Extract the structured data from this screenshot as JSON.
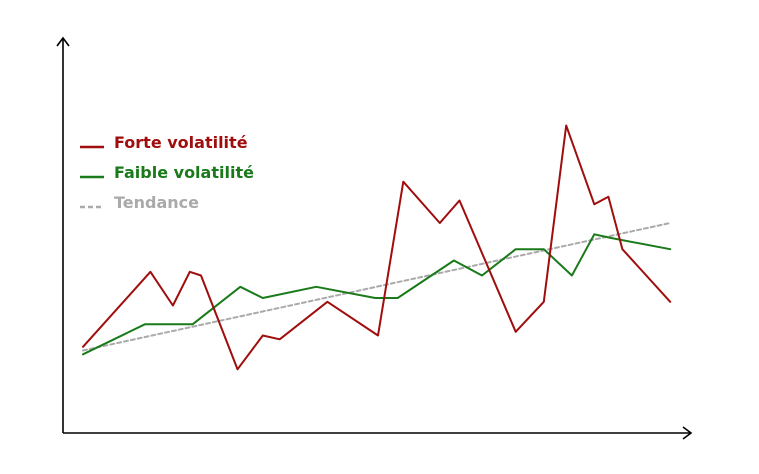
{
  "chart_data": {
    "type": "line",
    "title": "",
    "xlabel": "",
    "ylabel": "",
    "grid": false,
    "legend_position": "top-left",
    "x": [
      0,
      1,
      2,
      3,
      4,
      5,
      6,
      7,
      8,
      9,
      10,
      11,
      12,
      13,
      14,
      15,
      16,
      17,
      18,
      19,
      20,
      21
    ],
    "ylim": [
      0,
      10
    ],
    "series": [
      {
        "name": "Forte volatilité",
        "color": "#a00d0d",
        "style": "solid",
        "x": [
          0,
          2.4,
          3.2,
          3.8,
          4.2,
          5.5,
          6.4,
          7,
          8.7,
          10.5,
          11.4,
          12.7,
          13.4,
          15.4,
          16.4,
          17.2,
          18.2,
          18.7,
          19.2,
          20.9
        ],
        "values": [
          2.3,
          4.3,
          3.4,
          4.3,
          4.2,
          1.7,
          2.6,
          2.5,
          3.5,
          2.6,
          6.7,
          5.6,
          6.2,
          2.7,
          3.5,
          8.2,
          6.1,
          6.3,
          4.9,
          3.5
        ]
      },
      {
        "name": "Faible volatilité",
        "color": "#1a7a1a",
        "style": "solid",
        "x": [
          0,
          2.2,
          3.9,
          5.6,
          6.4,
          8.3,
          10.4,
          11.2,
          13.2,
          14.2,
          15.4,
          16.4,
          17.4,
          18.2,
          18.8,
          20.9
        ],
        "values": [
          2.1,
          2.9,
          2.9,
          3.9,
          3.6,
          3.9,
          3.6,
          3.6,
          4.6,
          4.2,
          4.9,
          4.9,
          4.2,
          5.3,
          5.2,
          4.9
        ]
      },
      {
        "name": "Tendance",
        "color": "#aaaaaa",
        "style": "dashed",
        "x": [
          0,
          20.9
        ],
        "values": [
          2.2,
          5.6
        ]
      }
    ]
  }
}
